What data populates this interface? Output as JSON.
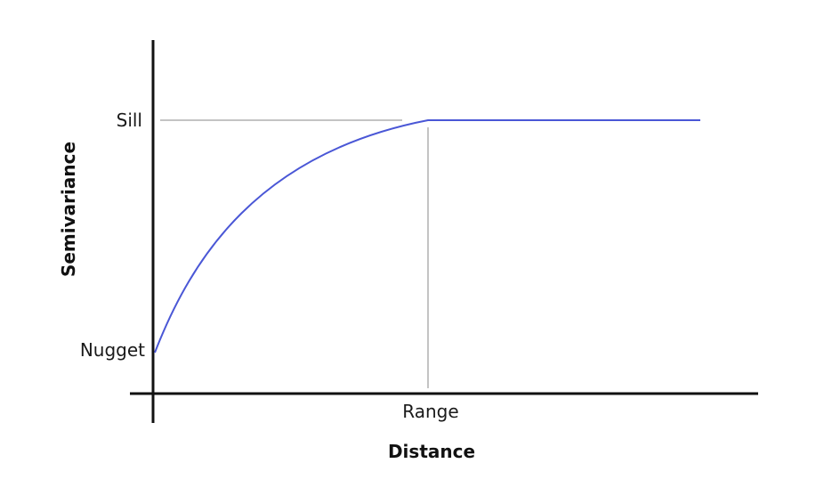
{
  "diagram": {
    "sill_label": "Sill",
    "nugget_label": "Nugget",
    "range_label": "Range",
    "x_axis_title": "Distance",
    "y_axis_title": "Semivariance",
    "colors": {
      "curve": "#4a57d6",
      "axis": "#111111",
      "guide": "#8a8a8a",
      "text": "#1a1a1a"
    }
  }
}
